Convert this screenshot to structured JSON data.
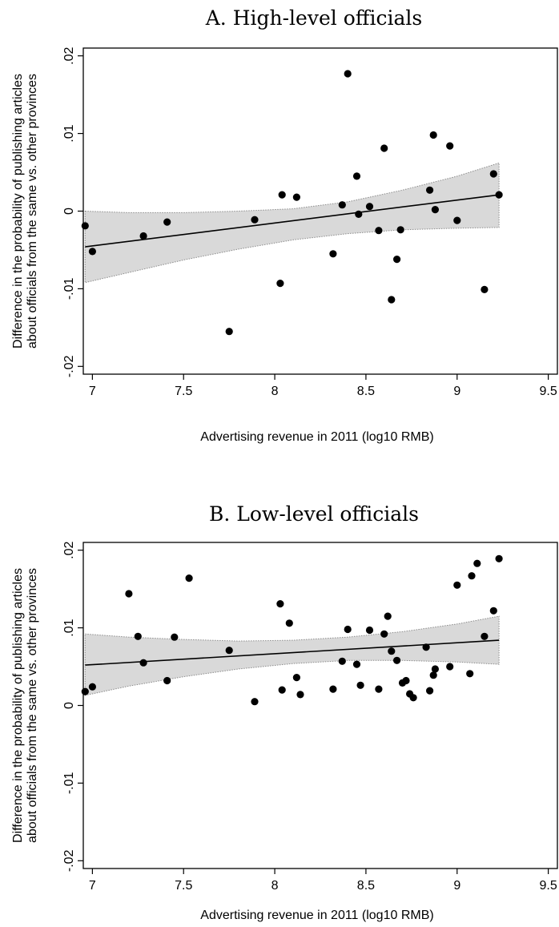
{
  "chart_data": [
    {
      "type": "scatter",
      "title": "A. High-level officials",
      "xlabel": "Advertising revenue in 2011 (log10 RMB)",
      "ylabel_lines": [
        "Difference in the probability of publishing articles",
        "about officials from the same vs. other provinces"
      ],
      "xlim": [
        6.95,
        9.55
      ],
      "ylim": [
        -0.021,
        0.021
      ],
      "xticks": [
        7,
        7.5,
        8,
        8.5,
        9,
        9.5
      ],
      "xtick_labels": [
        "7",
        "7.5",
        "8",
        "8.5",
        "9",
        "9.5"
      ],
      "yticks": [
        -0.02,
        -0.01,
        0,
        0.01,
        0.02
      ],
      "ytick_labels": [
        "-.02",
        "-.01",
        "0",
        ".01",
        ".02"
      ],
      "grid": false,
      "points": [
        [
          6.96,
          -0.0019
        ],
        [
          7.0,
          -0.0052
        ],
        [
          7.28,
          -0.0032
        ],
        [
          7.41,
          -0.0014
        ],
        [
          7.75,
          -0.0155
        ],
        [
          7.89,
          -0.0011
        ],
        [
          8.03,
          -0.0093
        ],
        [
          8.04,
          0.0021
        ],
        [
          8.12,
          0.0018
        ],
        [
          8.32,
          -0.0055
        ],
        [
          8.37,
          0.0008
        ],
        [
          8.4,
          0.0177
        ],
        [
          8.45,
          0.0045
        ],
        [
          8.46,
          -0.0004
        ],
        [
          8.52,
          0.0006
        ],
        [
          8.57,
          -0.0025
        ],
        [
          8.6,
          0.0081
        ],
        [
          8.64,
          -0.0114
        ],
        [
          8.67,
          -0.0062
        ],
        [
          8.69,
          -0.0024
        ],
        [
          8.85,
          0.0027
        ],
        [
          8.87,
          0.0098
        ],
        [
          8.88,
          0.0002
        ],
        [
          8.96,
          0.0084
        ],
        [
          9.0,
          -0.0012
        ],
        [
          9.15,
          -0.0101
        ],
        [
          9.2,
          0.0048
        ],
        [
          9.23,
          0.0021
        ]
      ],
      "fit_line": {
        "x": [
          6.96,
          9.23
        ],
        "y": [
          -0.0046,
          0.0021
        ]
      },
      "ci_band": {
        "x": [
          6.96,
          7.2,
          7.5,
          7.8,
          8.1,
          8.4,
          8.7,
          9.0,
          9.23
        ],
        "lower": [
          -0.0092,
          -0.0079,
          -0.0063,
          -0.0049,
          -0.0037,
          -0.0029,
          -0.0024,
          -0.0022,
          -0.0021
        ],
        "upper": [
          0.0,
          -0.0002,
          -0.0002,
          0.0,
          0.0003,
          0.0012,
          0.0027,
          0.0045,
          0.0062
        ]
      }
    },
    {
      "type": "scatter",
      "title": "B. Low-level officials",
      "xlabel": "Advertising revenue in 2011 (log10 RMB)",
      "ylabel_lines": [
        "Difference in the probability of publishing articles",
        "about officials from the same vs. other provinces"
      ],
      "xlim": [
        6.95,
        9.55
      ],
      "ylim": [
        -0.021,
        0.021
      ],
      "xticks": [
        7,
        7.5,
        8,
        8.5,
        9,
        9.5
      ],
      "xtick_labels": [
        "7",
        "7.5",
        "8",
        "8.5",
        "9",
        "9.5"
      ],
      "yticks": [
        -0.02,
        -0.01,
        0,
        0.01,
        0.02
      ],
      "ytick_labels": [
        "-.02",
        "-.01",
        "0",
        ".01",
        ".02"
      ],
      "grid": false,
      "points": [
        [
          6.96,
          0.0018
        ],
        [
          7.0,
          0.0024
        ],
        [
          7.2,
          0.0144
        ],
        [
          7.25,
          0.0089
        ],
        [
          7.28,
          0.0055
        ],
        [
          7.41,
          0.0032
        ],
        [
          7.45,
          0.0088
        ],
        [
          7.53,
          0.0164
        ],
        [
          7.75,
          0.0071
        ],
        [
          7.89,
          0.0005
        ],
        [
          8.03,
          0.0131
        ],
        [
          8.04,
          0.002
        ],
        [
          8.08,
          0.0106
        ],
        [
          8.12,
          0.0036
        ],
        [
          8.14,
          0.0014
        ],
        [
          8.32,
          0.0021
        ],
        [
          8.37,
          0.0057
        ],
        [
          8.4,
          0.0098
        ],
        [
          8.45,
          0.0053
        ],
        [
          8.47,
          0.0026
        ],
        [
          8.52,
          0.0097
        ],
        [
          8.57,
          0.0021
        ],
        [
          8.6,
          0.0092
        ],
        [
          8.62,
          0.0115
        ],
        [
          8.64,
          0.007
        ],
        [
          8.67,
          0.0058
        ],
        [
          8.7,
          0.0029
        ],
        [
          8.72,
          0.0032
        ],
        [
          8.74,
          0.0015
        ],
        [
          8.76,
          0.001
        ],
        [
          8.83,
          0.0075
        ],
        [
          8.85,
          0.0019
        ],
        [
          8.87,
          0.0039
        ],
        [
          8.88,
          0.0047
        ],
        [
          8.96,
          0.005
        ],
        [
          9.0,
          0.0155
        ],
        [
          9.07,
          0.0041
        ],
        [
          9.08,
          0.0167
        ],
        [
          9.11,
          0.0183
        ],
        [
          9.15,
          0.0089
        ],
        [
          9.2,
          0.0122
        ],
        [
          9.23,
          0.0189
        ]
      ],
      "fit_line": {
        "x": [
          6.96,
          9.23
        ],
        "y": [
          0.0052,
          0.0084
        ]
      },
      "ci_band": {
        "x": [
          6.96,
          7.2,
          7.5,
          7.8,
          8.1,
          8.4,
          8.7,
          9.0,
          9.23
        ],
        "lower": [
          0.0013,
          0.0025,
          0.0037,
          0.0047,
          0.0054,
          0.0058,
          0.0058,
          0.0056,
          0.0053
        ],
        "upper": [
          0.0092,
          0.0088,
          0.0085,
          0.0083,
          0.0084,
          0.0088,
          0.0095,
          0.0105,
          0.0115
        ]
      }
    }
  ]
}
